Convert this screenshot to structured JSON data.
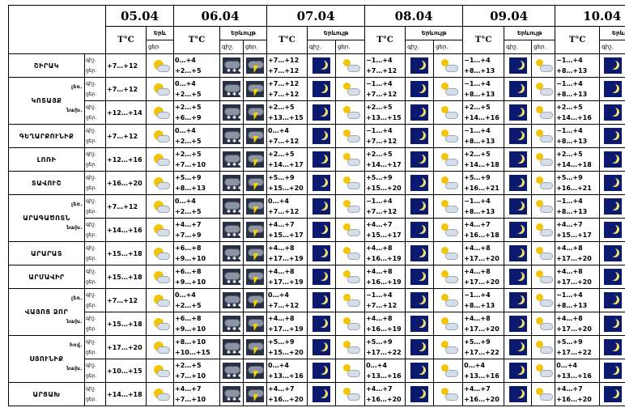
{
  "header": {
    "dates": [
      "05.04",
      "06.04",
      "07.04",
      "08.04",
      "09.04",
      "10.04"
    ],
    "temp_label": "T°C",
    "cloud_label": "Երևույթ",
    "cloud_label_short": "Երև",
    "night_label": "գիշ.",
    "day_label": "ցեր.",
    "day_label_short": "ցեր"
  },
  "rows": [
    {
      "region": "ՇԻՐԱԿ",
      "sub": "",
      "n": "+7…+12",
      "t": [
        "0…+4",
        "+7…+12",
        "−1…+4",
        "−1…+4",
        "−1…+4"
      ],
      "d": [
        "+7…+12",
        "+2…+5",
        "+7…+12",
        "+7…+12",
        "+8…+13",
        "+8…+13"
      ]
    },
    {
      "region": "ԿՈՏԱՅՔ",
      "sub": "լեռ.",
      "n": "+7…+12",
      "t": [
        "0…+4",
        "+7…+12",
        "−1…+4",
        "−1…+4",
        "−1…+4"
      ],
      "d": [
        "+7…+12",
        "+2…+5",
        "+7…+12",
        "+7…+12",
        "+8…+13",
        "+8…+13"
      ]
    },
    {
      "region": "",
      "sub": "նախ.",
      "n": "+12…+14",
      "t": [
        "+2…+5",
        "+2…+5",
        "+2…+5",
        "+2…+5",
        "+2…+5"
      ],
      "d": [
        "+12…+14",
        "+6…+9",
        "+13…+15",
        "+13…+15",
        "+14…+16",
        "+14…+16"
      ]
    },
    {
      "region": "ԳԵՂԱՐՔՈՒՆԻՔ",
      "sub": "",
      "n": "+7…+12",
      "t": [
        "0…+4",
        "0…+4",
        "−1…+4",
        "−1…+4",
        "−1…+4"
      ],
      "d": [
        "+7…+12",
        "+2…+5",
        "+7…+12",
        "+7…+12",
        "+8…+13",
        "+8…+13"
      ]
    },
    {
      "region": "ԼՈՌԻ",
      "sub": "",
      "n": "+12…+16",
      "t": [
        "+2…+5",
        "+2…+5",
        "+2…+5",
        "+2…+5",
        "+2…+5"
      ],
      "d": [
        "+12…+16",
        "+7…+10",
        "+14…+17",
        "+14…+17",
        "+14…+18",
        "+14…+18"
      ]
    },
    {
      "region": "ՏԱՎՈՒՇ",
      "sub": "",
      "n": "+16…+20",
      "t": [
        "+5…+9",
        "+5…+9",
        "+5…+9",
        "+5…+9",
        "+5…+9"
      ],
      "d": [
        "+16…+20",
        "+8…+13",
        "+15…+20",
        "+15…+20",
        "+16…+21",
        "+16…+21"
      ]
    },
    {
      "region": "ԱՐԱԳԱԾՈՏՆ",
      "sub": "լեռ.",
      "n": "+7…+12",
      "t": [
        "0…+4",
        "0…+4",
        "−1…+4",
        "−1…+4",
        "−1…+4"
      ],
      "d": [
        "+7…+12",
        "+2…+5",
        "+7…+12",
        "+7…+12",
        "+8…+13",
        "+8…+13"
      ]
    },
    {
      "region": "",
      "sub": "նախ.",
      "n": "+14…+16",
      "t": [
        "+4…+7",
        "+4…+7",
        "+4…+7",
        "+4…+7",
        "+4…+7"
      ],
      "d": [
        "+14…+16",
        "+7…+9",
        "+15…+17",
        "+15…+17",
        "+16…+18",
        "+15…+17"
      ]
    },
    {
      "region": "ԱՐԱՐԱՏ",
      "sub": "",
      "n": "+15…+18",
      "t": [
        "+6…+8",
        "+4…+8",
        "+4…+8",
        "+4…+8",
        "+4…+8"
      ],
      "d": [
        "+15…+18",
        "+9…+10",
        "+17…+19",
        "+16…+19",
        "+17…+20",
        "+17…+20"
      ]
    },
    {
      "region": "ԱՐՄԱՎԻՐ",
      "sub": "",
      "n": "+15…+18",
      "t": [
        "+6…+8",
        "+4…+8",
        "+4…+8",
        "+4…+8",
        "+4…+8"
      ],
      "d": [
        "+15…+18",
        "+9…+10",
        "+17…+19",
        "+16…+19",
        "+17…+20",
        "+17…+20"
      ]
    },
    {
      "region": "ՎԱՅՈՑ ՁՈՐ",
      "sub": "լեռ.",
      "n": "+7…+12",
      "t": [
        "0…+4",
        "0…+4",
        "−1…+4",
        "−1…+4",
        "−1…+4"
      ],
      "d": [
        "+7…+12",
        "+2…+5",
        "+7…+12",
        "+7…+12",
        "+8…+13",
        "+8…+13"
      ]
    },
    {
      "region": "",
      "sub": "նախ.",
      "n": "+15…+18",
      "t": [
        "+6…+8",
        "+4…+8",
        "+4…+8",
        "+4…+8",
        "+4…+8"
      ],
      "d": [
        "+15…+18",
        "+9…+10",
        "+17…+19",
        "+16…+19",
        "+17…+20",
        "+17…+20"
      ]
    },
    {
      "region": "ՍՅՈՒՆԻՔ",
      "sub": "հով.",
      "n": "+17…+20",
      "t": [
        "+8…+10",
        "+5…+9",
        "+5…+9",
        "+5…+9",
        "+5…+9"
      ],
      "d": [
        "+17…+20",
        "+10…+15",
        "+15…+20",
        "+17…+22",
        "+17…+22",
        "+17…+22"
      ]
    },
    {
      "region": "",
      "sub": "նախ.",
      "n": "+10…+15",
      "t": [
        "+2…+5",
        "0…+4",
        "0…+4",
        "0…+4",
        "0…+4"
      ],
      "d": [
        "+10…+15",
        "+7…+10",
        "+13…+16",
        "+13…+16",
        "+13…+16",
        "+13…+16"
      ]
    },
    {
      "region": "ԱՐՑԱԽ",
      "sub": "",
      "n": "+14…+18",
      "t": [
        "+4…+7",
        "+4…+7",
        "+4…+7",
        "+4…+7",
        "+4…+7"
      ],
      "d": [
        "+14…+18",
        "+7…+10",
        "+16…+20",
        "+16…+20",
        "+16…+20",
        "+16…+20"
      ]
    }
  ],
  "icon_pattern": {
    "d05": "sun-cloud-icon",
    "d06_night": "snow-cloud-icon",
    "d06_day": "storm-icon",
    "night": "moon-icon",
    "day": "partly-cloudy-icon"
  }
}
